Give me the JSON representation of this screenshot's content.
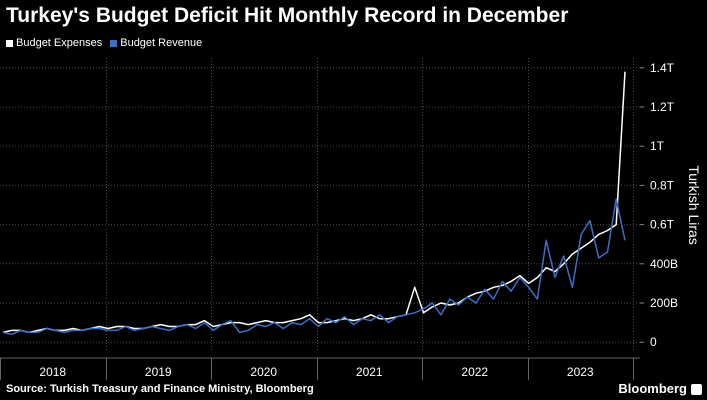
{
  "colors": {
    "background": "#000000",
    "expenses": "#ffffff",
    "revenue": "#3a6fc6",
    "grid": "#4a4a4a",
    "text": "#ffffff"
  },
  "footer": {
    "source": "Source: Turkish Treasury and Finance Ministry, Bloomberg",
    "brand": "Bloomberg"
  },
  "chart_data": {
    "type": "line",
    "title": "Turkey's Budget Deficit Hit Monthly Record in December",
    "ylabel": "Turkish Liras",
    "xlabel": "",
    "ylim": [
      -0.05,
      1.45
    ],
    "yticks": [
      {
        "value": 0,
        "label": "0"
      },
      {
        "value": 0.2,
        "label": "200B"
      },
      {
        "value": 0.4,
        "label": "400B"
      },
      {
        "value": 0.6,
        "label": "0.6T"
      },
      {
        "value": 0.8,
        "label": "0.8T"
      },
      {
        "value": 1.0,
        "label": "1T"
      },
      {
        "value": 1.2,
        "label": "1.2T"
      },
      {
        "value": 1.4,
        "label": "1.4T"
      }
    ],
    "x_labels": [
      "2018",
      "2019",
      "2020",
      "2021",
      "2022",
      "2023"
    ],
    "x_start": "2018-01",
    "grid": true,
    "legend_position": "top-left",
    "series": [
      {
        "name": "Budget Expenses",
        "color": "#ffffff",
        "values": [
          0.05,
          0.06,
          0.06,
          0.05,
          0.06,
          0.07,
          0.06,
          0.06,
          0.07,
          0.06,
          0.07,
          0.08,
          0.07,
          0.08,
          0.08,
          0.07,
          0.07,
          0.08,
          0.09,
          0.08,
          0.08,
          0.09,
          0.09,
          0.11,
          0.08,
          0.09,
          0.1,
          0.1,
          0.09,
          0.1,
          0.11,
          0.1,
          0.1,
          0.11,
          0.12,
          0.14,
          0.1,
          0.1,
          0.11,
          0.12,
          0.11,
          0.12,
          0.14,
          0.12,
          0.12,
          0.13,
          0.14,
          0.28,
          0.15,
          0.18,
          0.2,
          0.19,
          0.2,
          0.23,
          0.25,
          0.26,
          0.28,
          0.29,
          0.31,
          0.34,
          0.3,
          0.33,
          0.38,
          0.36,
          0.4,
          0.45,
          0.48,
          0.51,
          0.55,
          0.57,
          0.6,
          1.38
        ]
      },
      {
        "name": "Budget Revenue",
        "color": "#3a6fc6",
        "values": [
          0.05,
          0.04,
          0.06,
          0.05,
          0.05,
          0.07,
          0.06,
          0.05,
          0.06,
          0.06,
          0.07,
          0.07,
          0.06,
          0.06,
          0.08,
          0.06,
          0.07,
          0.08,
          0.07,
          0.06,
          0.08,
          0.09,
          0.07,
          0.1,
          0.06,
          0.09,
          0.11,
          0.05,
          0.06,
          0.09,
          0.08,
          0.1,
          0.07,
          0.1,
          0.09,
          0.12,
          0.08,
          0.12,
          0.1,
          0.13,
          0.09,
          0.12,
          0.11,
          0.14,
          0.1,
          0.13,
          0.14,
          0.15,
          0.17,
          0.2,
          0.14,
          0.22,
          0.19,
          0.23,
          0.2,
          0.27,
          0.22,
          0.31,
          0.26,
          0.33,
          0.28,
          0.22,
          0.52,
          0.33,
          0.44,
          0.28,
          0.55,
          0.62,
          0.43,
          0.46,
          0.73,
          0.52
        ]
      }
    ]
  }
}
